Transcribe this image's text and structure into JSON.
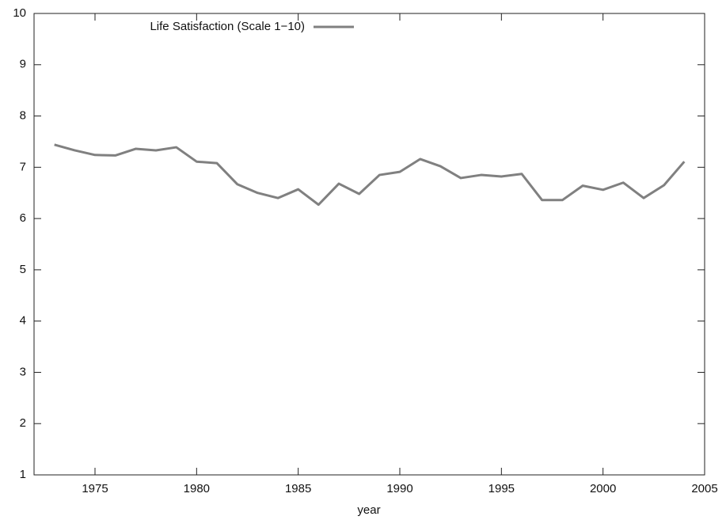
{
  "chart_data": {
    "type": "line",
    "xlabel": "year",
    "x": [
      1973,
      1974,
      1975,
      1976,
      1977,
      1978,
      1979,
      1980,
      1981,
      1982,
      1983,
      1984,
      1985,
      1986,
      1987,
      1988,
      1989,
      1990,
      1991,
      1992,
      1993,
      1994,
      1995,
      1996,
      1997,
      1998,
      1999,
      2000,
      2001,
      2002,
      2003,
      2004
    ],
    "series": [
      {
        "name": "Life Satisfaction (Scale 1−10)",
        "color": "#808080",
        "values": [
          7.44,
          7.33,
          7.24,
          7.23,
          7.36,
          7.33,
          7.39,
          7.11,
          7.08,
          6.67,
          6.5,
          6.4,
          6.57,
          6.27,
          6.68,
          6.48,
          6.85,
          6.91,
          7.16,
          7.02,
          6.79,
          6.85,
          6.82,
          6.87,
          6.36,
          6.36,
          6.64,
          6.56,
          6.7,
          6.4,
          6.65,
          7.11
        ]
      }
    ],
    "xlim": [
      1972,
      2005
    ],
    "xticks": [
      1975,
      1980,
      1985,
      1990,
      1995,
      2000,
      2005
    ],
    "ylim": [
      1,
      10
    ],
    "yticks": [
      1,
      2,
      3,
      4,
      5,
      6,
      7,
      8,
      9,
      10
    ],
    "legend": "top-left"
  }
}
